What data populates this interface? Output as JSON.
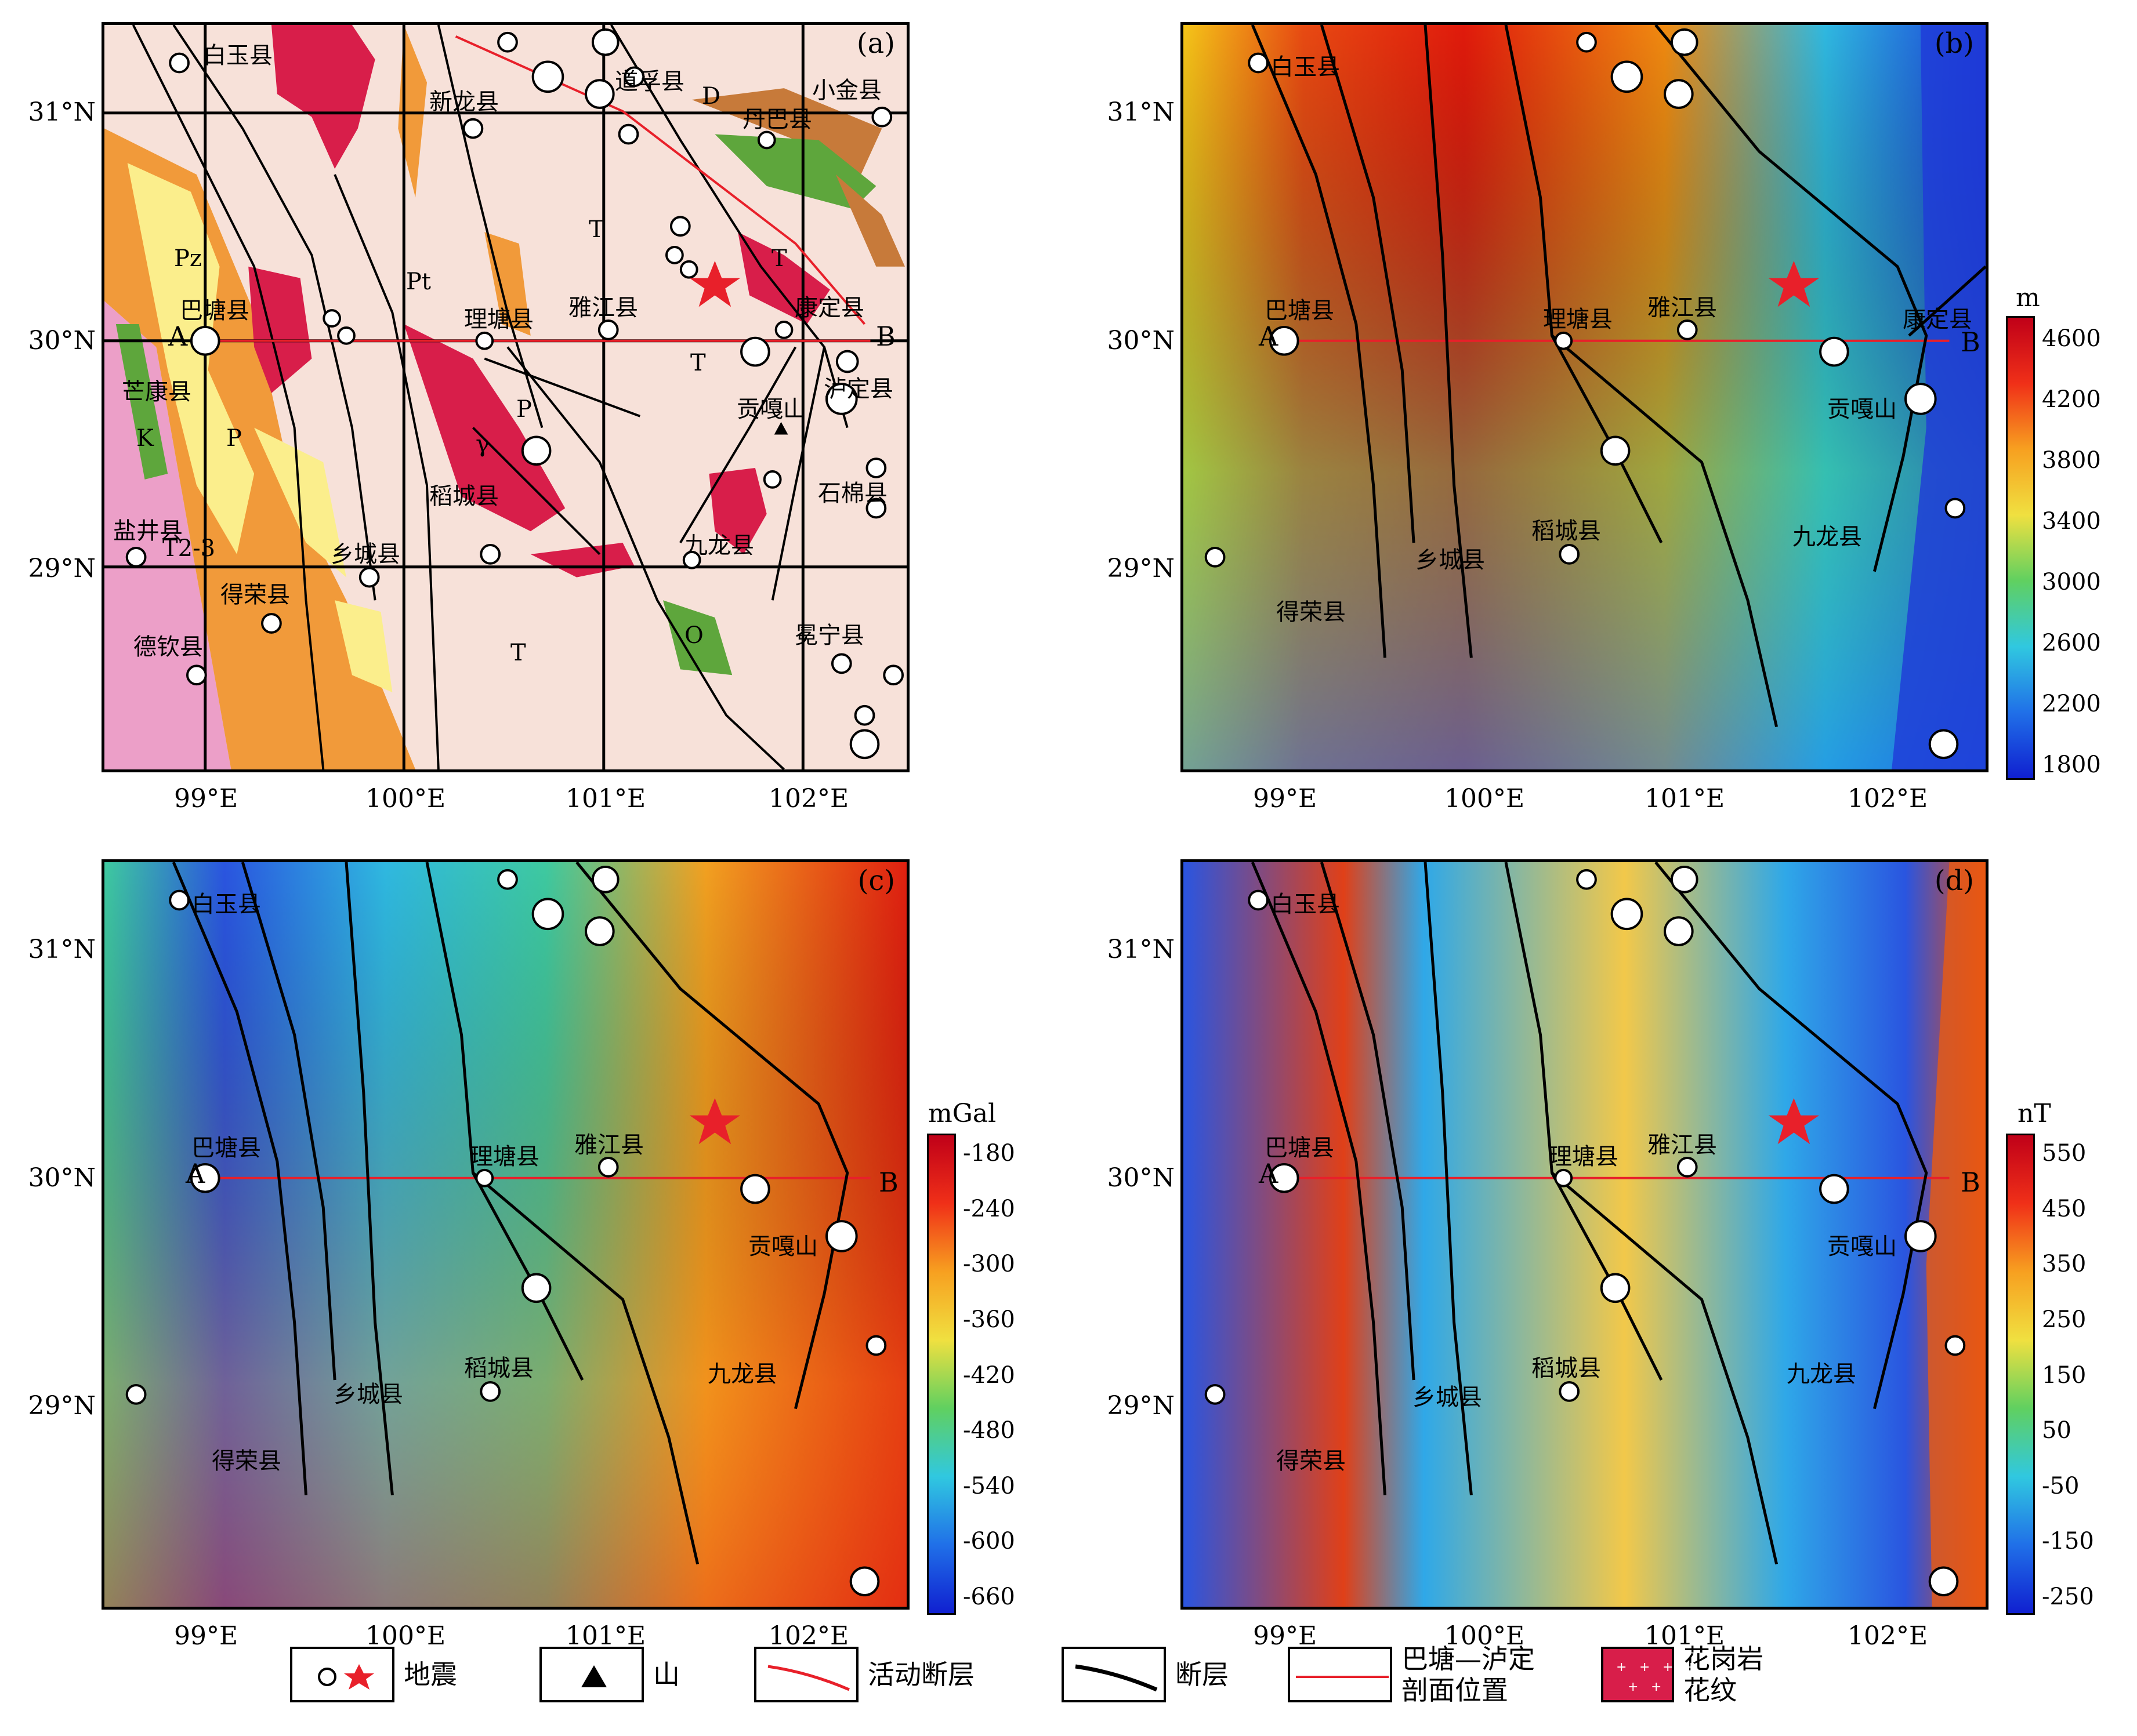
{
  "panels": [
    {
      "id": "a",
      "label": "(a)"
    },
    {
      "id": "b",
      "label": "(b)"
    },
    {
      "id": "c",
      "label": "(c)"
    },
    {
      "id": "d",
      "label": "(d)"
    }
  ],
  "axes": {
    "x_ticks": [
      "99°E",
      "100°E",
      "101°E",
      "102°E"
    ],
    "y_ticks": [
      "31°N",
      "30°N",
      "29°N"
    ]
  },
  "colorbars": [
    {
      "panel": "b",
      "unit": "m",
      "ticks": [
        "4600",
        "4200",
        "3800",
        "3400",
        "3000",
        "2600",
        "2200",
        "1800"
      ]
    },
    {
      "panel": "c",
      "unit": "mGal",
      "ticks": [
        "-180",
        "-240",
        "-300",
        "-360",
        "-420",
        "-480",
        "-540",
        "-600",
        "-660"
      ]
    },
    {
      "panel": "d",
      "unit": "nT",
      "ticks": [
        "550",
        "450",
        "350",
        "250",
        "150",
        "50",
        "-50",
        "-150",
        "-250"
      ]
    }
  ],
  "places": {
    "baiyu": "白玉县",
    "xinlong": "新龙县",
    "daofu": "道孚县",
    "xiaojin": "小金县",
    "danba": "丹巴县",
    "batang": "巴塘县",
    "litang": "理塘县",
    "yajiang": "雅江县",
    "kangding": "康定县",
    "luding": "泸定县",
    "mangkang": "芒康县",
    "gongga": "贡嘎山",
    "shimian": "石棉县",
    "yanjing": "盐井县",
    "daocheng": "稻城县",
    "jiulong": "九龙县",
    "xiangcheng": "乡城县",
    "derong": "得荣县",
    "deqin": "德钦县",
    "mianning": "冕宁县",
    "A": "A",
    "B": "B"
  },
  "panel_a_units": [
    "D",
    "T",
    "T",
    "Pt",
    "Pz",
    "P",
    "K",
    "P",
    "O",
    "T",
    "T",
    "γ",
    "T2-3"
  ],
  "legend": [
    {
      "name": "earthquake",
      "label": "地震"
    },
    {
      "name": "mountain",
      "label": "山"
    },
    {
      "name": "active-fault",
      "label": "活动断层"
    },
    {
      "name": "fault",
      "label": "断层"
    },
    {
      "name": "profile",
      "label": "巴塘—泸定\n剖面位置"
    },
    {
      "name": "granite",
      "label": "花岗岩花纹"
    }
  ],
  "colors": {
    "active_fault": "#e8202a",
    "granite": "#d81e4a",
    "background_a": "#f7e1d9"
  }
}
